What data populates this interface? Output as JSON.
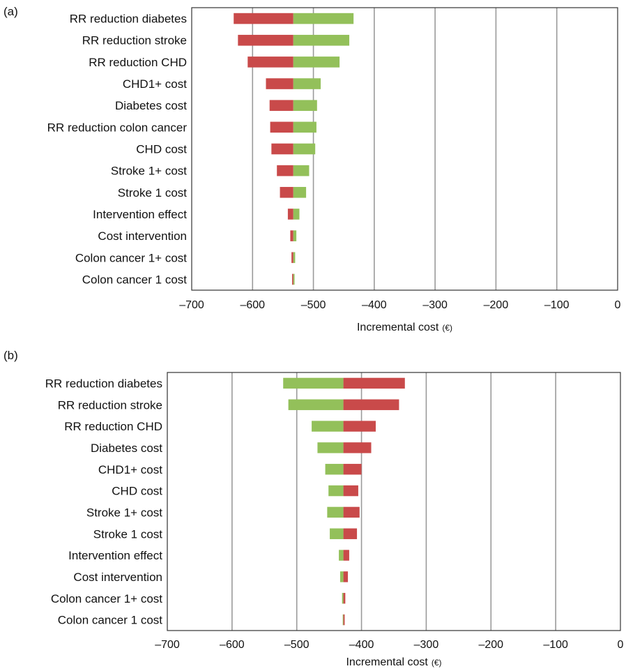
{
  "colors": {
    "low": "#c94a4a",
    "high": "#93c05a",
    "grid": "#9a9a9a",
    "frame": "#333333",
    "text": "#111111"
  },
  "chart_data": [
    {
      "type": "bar",
      "orientation": "horizontal",
      "style": "tornado",
      "panel_label": "(a)",
      "xlabel": "Incremental cost",
      "xunit": "(€)",
      "xlim": [
        -700,
        0
      ],
      "xticks": [
        -700,
        -600,
        -500,
        -400,
        -300,
        -200,
        -100,
        0
      ],
      "xtick_labels": [
        "–700",
        "–600",
        "–500",
        "–400",
        "–300",
        "–200",
        "–100",
        "0"
      ],
      "grid": "vertical",
      "base": -533,
      "categories": [
        "RR reduction diabetes",
        "RR reduction stroke",
        "RR reduction CHD",
        "CHD1+ cost",
        "Diabetes cost",
        "RR reduction colon cancer",
        "CHD cost",
        "Stroke 1+ cost",
        "Stroke 1 cost",
        "Intervention effect",
        "Cost intervention",
        "Colon cancer 1+ cost",
        "Colon cancer 1 cost"
      ],
      "low_values": [
        -631,
        -624,
        -608,
        -578,
        -572,
        -571,
        -569,
        -560,
        -555,
        -542,
        -538,
        -536,
        -535
      ],
      "high_values": [
        -434,
        -441,
        -457,
        -488,
        -494,
        -495,
        -497,
        -507,
        -512,
        -523,
        -528,
        -530,
        -531
      ]
    },
    {
      "type": "bar",
      "orientation": "horizontal",
      "style": "tornado",
      "panel_label": "(b)",
      "xlabel": "Incremental cost",
      "xunit": "(€)",
      "xlim": [
        -700,
        0
      ],
      "xticks": [
        -700,
        -600,
        -500,
        -400,
        -300,
        -200,
        -100,
        0
      ],
      "xtick_labels": [
        "–700",
        "–600",
        "–500",
        "–400",
        "–300",
        "–200",
        "–100",
        "0"
      ],
      "grid": "vertical",
      "base": -428,
      "categories": [
        "RR reduction diabetes",
        "RR reduction stroke",
        "RR reduction CHD",
        "Diabetes cost",
        "CHD1+ cost",
        "CHD cost",
        "Stroke 1+ cost",
        "Stroke 1 cost",
        "Intervention effect",
        "Cost intervention",
        "Colon cancer 1+ cost",
        "Colon cancer 1 cost"
      ],
      "low_values": [
        -333,
        -342,
        -378,
        -385,
        -400,
        -405,
        -403,
        -407,
        -419,
        -421,
        -425,
        -426
      ],
      "high_values": [
        -521,
        -513,
        -477,
        -468,
        -456,
        -451,
        -453,
        -449,
        -435,
        -433,
        -430,
        -429
      ]
    }
  ]
}
